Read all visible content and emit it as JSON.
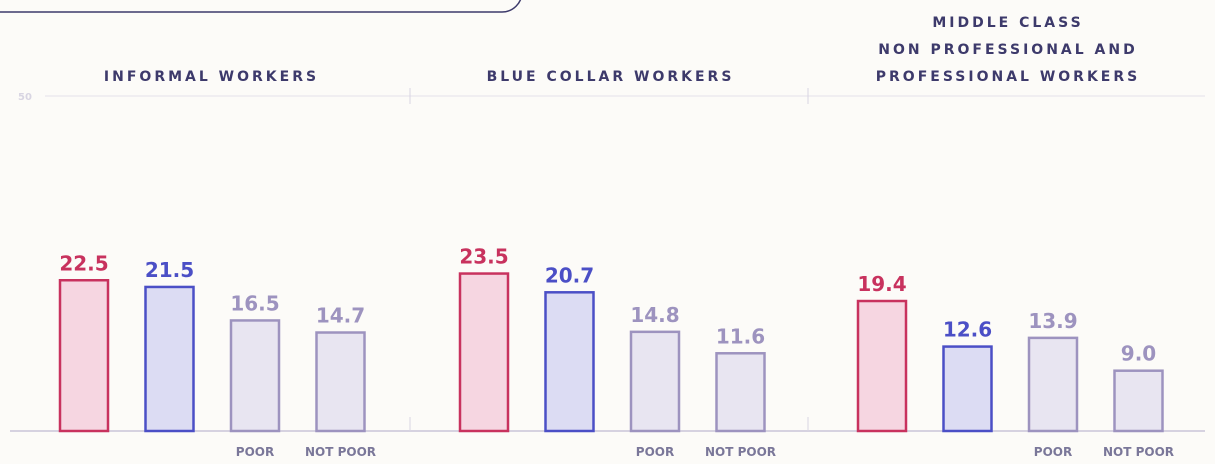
{
  "chart_data": [
    {
      "type": "bar",
      "title": [
        "INFORMAL WORKERS"
      ],
      "categories": [
        null,
        null,
        "POOR",
        "NOT POOR"
      ],
      "values": [
        22.5,
        21.5,
        16.5,
        14.7
      ],
      "colors": [
        "#c8325e",
        "#4b4fc6",
        "#9d93bf",
        "#9d93bf"
      ],
      "fills": [
        "#f6d6e1",
        "#dcdcf3",
        "#e8e5f1",
        "#e8e5f1"
      ],
      "ylim": [
        0,
        50
      ],
      "yticks": [
        50
      ]
    },
    {
      "type": "bar",
      "title": [
        "BLUE COLLAR WORKERS"
      ],
      "categories": [
        null,
        null,
        "POOR",
        "NOT POOR"
      ],
      "values": [
        23.5,
        20.7,
        14.8,
        11.6
      ],
      "colors": [
        "#c8325e",
        "#4b4fc6",
        "#9d93bf",
        "#9d93bf"
      ],
      "fills": [
        "#f6d6e1",
        "#dcdcf3",
        "#e8e5f1",
        "#e8e5f1"
      ],
      "ylim": [
        0,
        50
      ],
      "yticks": [
        50
      ]
    },
    {
      "type": "bar",
      "title": [
        "MIDDLE CLASS",
        "NON PROFESSIONAL AND",
        "PROFESSIONAL WORKERS"
      ],
      "categories": [
        null,
        null,
        "POOR",
        "NOT POOR"
      ],
      "values": [
        19.4,
        12.6,
        13.9,
        9.0
      ],
      "value_labels": [
        "19.4",
        "12.6",
        "13.9",
        "9.0"
      ],
      "colors": [
        "#c8325e",
        "#4b4fc6",
        "#9d93bf",
        "#9d93bf"
      ],
      "fills": [
        "#f6d6e1",
        "#dcdcf3",
        "#e8e5f1",
        "#e8e5f1"
      ],
      "ylim": [
        0,
        50
      ],
      "yticks": [
        50
      ]
    }
  ]
}
